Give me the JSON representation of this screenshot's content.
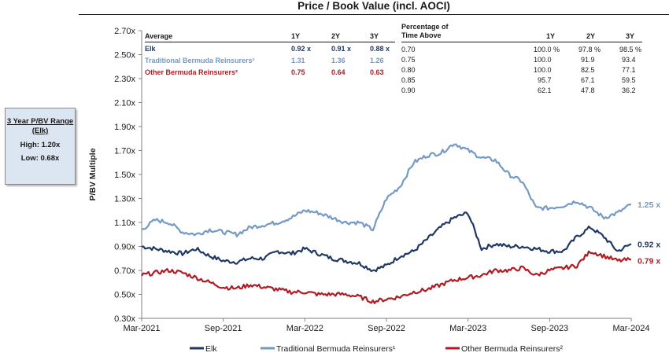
{
  "chart_data": {
    "type": "line",
    "title": "Price / Book Value (incl. AOCI)",
    "ylabel": "P/BV Multiple",
    "xlabel": "",
    "ylim": [
      0.3,
      2.7
    ],
    "yticks": [
      "2.70x",
      "2.50x",
      "2.30x",
      "2.10x",
      "1.90x",
      "1.70x",
      "1.50x",
      "1.30x",
      "1.10x",
      "0.90x",
      "0.70x",
      "0.50x",
      "0.30x"
    ],
    "ytick_values": [
      2.7,
      2.5,
      2.3,
      2.1,
      1.9,
      1.7,
      1.5,
      1.3,
      1.1,
      0.9,
      0.7,
      0.5,
      0.3
    ],
    "xticks": [
      "Mar-2021",
      "Sep-2021",
      "Mar-2022",
      "Sep-2022",
      "Mar-2023",
      "Sep-2023",
      "Mar-2024"
    ],
    "xtick_months": [
      0,
      6,
      12,
      18,
      24,
      30,
      36
    ],
    "x_months": [
      0,
      1,
      2,
      3,
      4,
      5,
      6,
      7,
      8,
      9,
      10,
      11,
      12,
      13,
      14,
      15,
      16,
      17,
      18,
      19,
      20,
      21,
      22,
      23,
      24,
      25,
      26,
      27,
      28,
      29,
      30,
      31,
      32,
      33,
      34,
      35,
      36
    ],
    "series": [
      {
        "name": "Elk",
        "color": "#1f3864",
        "end_label": "0.92 x",
        "values": [
          0.9,
          0.88,
          0.86,
          0.84,
          0.88,
          0.82,
          0.78,
          0.77,
          0.8,
          0.8,
          0.86,
          0.84,
          0.88,
          0.84,
          0.8,
          0.78,
          0.76,
          0.7,
          0.74,
          0.82,
          0.86,
          0.96,
          1.06,
          1.14,
          1.18,
          0.88,
          0.92,
          0.9,
          0.9,
          0.88,
          0.86,
          0.86,
          0.98,
          1.06,
          0.98,
          0.86,
          0.92
        ]
      },
      {
        "name": "Traditional Bermuda Reinsurers¹",
        "color": "#7399c6",
        "end_label": "1.25 x",
        "values": [
          1.04,
          1.12,
          1.1,
          1.02,
          1.0,
          1.04,
          1.02,
          1.0,
          1.06,
          1.08,
          1.1,
          1.14,
          1.2,
          1.18,
          1.14,
          1.1,
          1.1,
          1.04,
          1.3,
          1.4,
          1.6,
          1.66,
          1.68,
          1.76,
          1.7,
          1.64,
          1.62,
          1.5,
          1.44,
          1.22,
          1.22,
          1.24,
          1.28,
          1.22,
          1.14,
          1.18,
          1.25
        ]
      },
      {
        "name": "Other Bermuda Reinsurers²",
        "color": "#b01c24",
        "end_label": "0.79 x",
        "values": [
          0.66,
          0.68,
          0.7,
          0.68,
          0.64,
          0.6,
          0.56,
          0.55,
          0.58,
          0.56,
          0.54,
          0.52,
          0.52,
          0.5,
          0.5,
          0.5,
          0.48,
          0.44,
          0.46,
          0.48,
          0.52,
          0.54,
          0.58,
          0.62,
          0.64,
          0.66,
          0.7,
          0.7,
          0.72,
          0.66,
          0.7,
          0.72,
          0.74,
          0.86,
          0.82,
          0.78,
          0.79
        ]
      }
    ],
    "legend_position": "bottom"
  },
  "range_box": {
    "title": "3 Year P/BV Range (Elk)",
    "high": "High: 1.20x",
    "low": "Low: 0.68x"
  },
  "average_table": {
    "header": [
      "Average",
      "1Y",
      "2Y",
      "3Y"
    ],
    "rows": [
      {
        "name": "Elk",
        "y1": "0.92 x",
        "y2": "0.91 x",
        "y3": "0.88 x",
        "color": "#1f3864"
      },
      {
        "name": "Traditional Bermuda Reinsurers¹",
        "y1": "1.31",
        "y2": "1.36",
        "y3": "1.26",
        "color": "#7399c6"
      },
      {
        "name": "Other Bermuda Reinsurers²",
        "y1": "0.75",
        "y2": "0.64",
        "y3": "0.63",
        "color": "#b01c24"
      }
    ]
  },
  "percentage_table": {
    "header_line1": "Percentage of",
    "header_line2": "Time Above",
    "cols": [
      "1Y",
      "2Y",
      "3Y"
    ],
    "rows": [
      {
        "threshold": "0.70",
        "y1": "100.0 %",
        "y2": "97.8 %",
        "y3": "98.5 %"
      },
      {
        "threshold": "0.75",
        "y1": "100.0",
        "y2": "91.9",
        "y3": "93.4"
      },
      {
        "threshold": "0.80",
        "y1": "100.0",
        "y2": "82.5",
        "y3": "77.1"
      },
      {
        "threshold": "0.85",
        "y1": "95.7",
        "y2": "67.1",
        "y3": "59.5"
      },
      {
        "threshold": "0.90",
        "y1": "62.1",
        "y2": "47.8",
        "y3": "36.2"
      }
    ]
  }
}
